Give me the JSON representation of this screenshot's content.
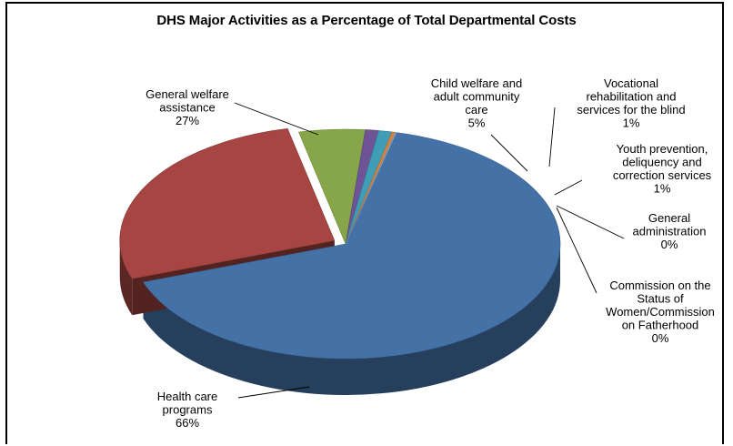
{
  "chart_data": {
    "type": "pie",
    "title": "DHS Major Activities as a Percentage of Total Departmental Costs",
    "legend": "none",
    "slices": [
      {
        "label": [
          "Health care",
          "programs"
        ],
        "pct_label": "66%",
        "value": 66,
        "color": "#4472a7"
      },
      {
        "label": [
          "General welfare",
          "assistance"
        ],
        "pct_label": "27%",
        "value": 27,
        "color": "#a64542"
      },
      {
        "label": [
          "Child welfare  and",
          "adult community",
          "care"
        ],
        "pct_label": "5%",
        "value": 5,
        "color": "#86a649"
      },
      {
        "label": [
          "Vocational",
          "rehabilitation and",
          "services for the blind"
        ],
        "pct_label": "1%",
        "value": 1,
        "color": "#6e5497"
      },
      {
        "label": [
          "Youth prevention,",
          "deliquency and",
          "correction services"
        ],
        "pct_label": "1%",
        "value": 1,
        "color": "#3f9db7"
      },
      {
        "label": [
          "General",
          "administration"
        ],
        "pct_label": "0%",
        "value": 0.25,
        "color": "#d9853a"
      },
      {
        "label": [
          "Commission on the",
          "Status of",
          "Women/Commission",
          "on Fatherhood"
        ],
        "pct_label": "0%",
        "value": 0.1,
        "color": "#8fa8cc"
      }
    ]
  }
}
